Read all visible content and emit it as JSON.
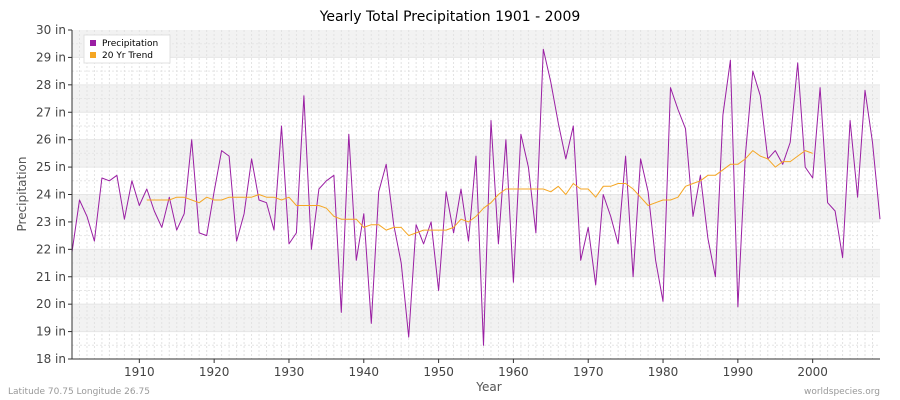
{
  "colors": {
    "precipitation": "#9a1fa3",
    "trend": "#f5a623",
    "band": "#f2f2f2",
    "grid": "#ffffff",
    "axis": "#333333"
  },
  "footer": {
    "left": "Latitude 70.75 Longitude 26.75",
    "right": "worldspecies.org"
  },
  "chart_data": {
    "type": "line",
    "title": "Yearly Total Precipitation 1901 - 2009",
    "xlabel": "Year",
    "ylabel": "Precipitation",
    "xlim": [
      1901,
      2009
    ],
    "ylim": [
      18,
      30
    ],
    "x_ticks": [
      1910,
      1920,
      1930,
      1940,
      1950,
      1960,
      1970,
      1980,
      1990,
      2000
    ],
    "y_ticks": [
      {
        "value": 18,
        "label": "18 in"
      },
      {
        "value": 19,
        "label": "19 in"
      },
      {
        "value": 20,
        "label": "20 in"
      },
      {
        "value": 21,
        "label": "21 in"
      },
      {
        "value": 22,
        "label": "22 in"
      },
      {
        "value": 23,
        "label": "23 in"
      },
      {
        "value": 24,
        "label": "24 in"
      },
      {
        "value": 25,
        "label": "25 in"
      },
      {
        "value": 26,
        "label": "26 in"
      },
      {
        "value": 27,
        "label": "27 in"
      },
      {
        "value": 28,
        "label": "28 in"
      },
      {
        "value": 29,
        "label": "29 in"
      },
      {
        "value": 30,
        "label": "30 in"
      }
    ],
    "legend_position": "top-left",
    "grid": true,
    "series": [
      {
        "name": "Precipitation",
        "x_start": 1901,
        "values": [
          21.9,
          23.8,
          23.2,
          22.3,
          24.6,
          24.5,
          24.7,
          23.1,
          24.5,
          23.6,
          24.2,
          23.4,
          22.8,
          23.9,
          22.7,
          23.3,
          26.0,
          22.6,
          22.5,
          24.1,
          25.6,
          25.4,
          22.3,
          23.3,
          25.3,
          23.8,
          23.7,
          22.7,
          26.5,
          22.2,
          22.6,
          27.6,
          22.0,
          24.2,
          24.5,
          24.7,
          19.7,
          26.2,
          21.6,
          23.3,
          19.3,
          24.1,
          25.1,
          22.9,
          21.5,
          18.8,
          22.9,
          22.2,
          23.0,
          20.5,
          24.1,
          22.6,
          24.2,
          22.3,
          25.4,
          18.5,
          26.7,
          22.2,
          26.0,
          20.8,
          26.2,
          25.0,
          22.6,
          29.3,
          28.1,
          26.6,
          25.3,
          26.5,
          21.6,
          22.8,
          20.7,
          24.0,
          23.2,
          22.2,
          25.4,
          21.0,
          25.3,
          24.1,
          21.6,
          20.1,
          27.9,
          27.1,
          26.4,
          23.2,
          24.7,
          22.4,
          21.0,
          26.9,
          28.9,
          19.9,
          25.4,
          28.5,
          27.6,
          25.3,
          25.6,
          25.1,
          25.9,
          28.8,
          25.0,
          24.6,
          27.9,
          23.7,
          23.4,
          21.7,
          26.7,
          23.9,
          27.8,
          25.9,
          23.1
        ]
      },
      {
        "name": "20 Yr Trend",
        "x_start": 1911,
        "values": [
          23.8,
          23.8,
          23.8,
          23.8,
          23.9,
          23.9,
          23.8,
          23.7,
          23.9,
          23.8,
          23.8,
          23.9,
          23.9,
          23.9,
          23.9,
          24.0,
          23.9,
          23.9,
          23.8,
          23.9,
          23.6,
          23.6,
          23.6,
          23.6,
          23.5,
          23.2,
          23.1,
          23.1,
          23.1,
          22.8,
          22.9,
          22.9,
          22.7,
          22.8,
          22.8,
          22.5,
          22.6,
          22.7,
          22.7,
          22.7,
          22.7,
          22.8,
          23.1,
          23.0,
          23.2,
          23.5,
          23.7,
          24.0,
          24.2,
          24.2,
          24.2,
          24.2,
          24.2,
          24.2,
          24.1,
          24.3,
          24.0,
          24.4,
          24.2,
          24.2,
          23.9,
          24.3,
          24.3,
          24.4,
          24.4,
          24.2,
          23.9,
          23.6,
          23.7,
          23.8,
          23.8,
          23.9,
          24.3,
          24.4,
          24.5,
          24.7,
          24.7,
          24.9,
          25.1,
          25.1,
          25.3,
          25.6,
          25.4,
          25.3,
          25.0,
          25.2,
          25.2,
          25.4,
          25.6,
          25.5
        ]
      }
    ]
  }
}
